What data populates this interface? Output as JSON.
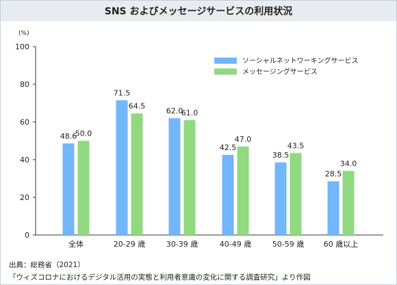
{
  "title": "SNS およびメッセージサービスの利用状況",
  "source_line1": "出典：総務省（2021）",
  "source_line2": "「ウィズコロナにおけるデジタル活用の実態と利用者意識の変化に関する調査研究」より作図",
  "chart_data": {
    "type": "bar",
    "unit": "(%)",
    "categories": [
      "全体",
      "20-29 歳",
      "30-39 歳",
      "40-49 歳",
      "50-59 歳",
      "60 歳以上"
    ],
    "series": [
      {
        "name": "ソーシャルネットワーキングサービス",
        "values": [
          48.6,
          71.5,
          62.0,
          42.5,
          38.5,
          28.5
        ],
        "color": "#72b6fb"
      },
      {
        "name": "メッセージングサービス",
        "values": [
          50.0,
          64.5,
          61.0,
          47.0,
          43.5,
          34.0
        ],
        "color": "#90d981"
      }
    ],
    "ylim": [
      0,
      100
    ],
    "yticks": [
      0,
      20,
      40,
      60,
      80,
      100
    ],
    "grid": false,
    "legend_position": "top-right"
  }
}
